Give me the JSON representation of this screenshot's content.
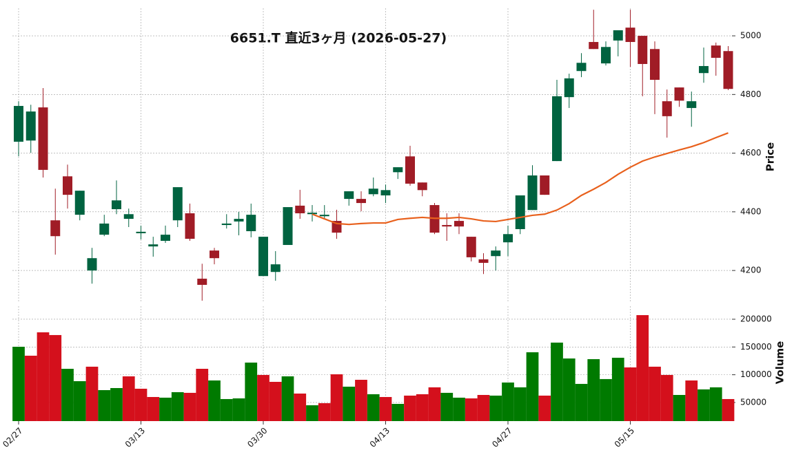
{
  "chart_data": {
    "type": "candlestick",
    "title": "6651.T  直近3ヶ月  (2026-05-27)",
    "ylabel": "Price",
    "volume_label": "Volume",
    "categories": [
      "02/27",
      null,
      null,
      null,
      null,
      null,
      null,
      null,
      null,
      null,
      "03/13",
      null,
      null,
      null,
      null,
      null,
      null,
      null,
      null,
      null,
      "03/30",
      null,
      null,
      null,
      null,
      null,
      null,
      null,
      null,
      null,
      "04/13",
      null,
      null,
      null,
      null,
      null,
      null,
      null,
      null,
      null,
      "04/27",
      null,
      null,
      null,
      null,
      null,
      null,
      null,
      null,
      null,
      "05/15",
      null,
      null,
      null,
      null,
      null,
      null,
      null,
      null
    ],
    "open": [
      4639,
      4643,
      4756,
      4371,
      4521,
      4390,
      4200,
      4322,
      4409,
      4376,
      4327,
      4282,
      4301,
      4371,
      4395,
      4172,
      4268,
      4355,
      4367,
      4334,
      4181,
      4195,
      4287,
      4421,
      4392,
      4385,
      4369,
      4444,
      4444,
      4460,
      4456,
      4535,
      4589,
      4500,
      4423,
      4355,
      4369,
      4315,
      4238,
      4249,
      4296,
      4341,
      4406,
      4524,
      4573,
      4791,
      4880,
      4979,
      4906,
      4984,
      5028,
      5000,
      4955,
      4777,
      4824,
      4754,
      4873,
      4967,
      4948
    ],
    "high": [
      4777,
      4765,
      4822,
      4479,
      4561,
      4472,
      4277,
      4390,
      4507,
      4411,
      4353,
      4315,
      4353,
      4484,
      4428,
      4223,
      4277,
      4392,
      4400,
      4428,
      4315,
      4266,
      4416,
      4475,
      4423,
      4423,
      4407,
      4470,
      4470,
      4517,
      4493,
      4552,
      4625,
      4500,
      4430,
      4395,
      4395,
      4315,
      4259,
      4282,
      4353,
      4456,
      4559,
      4524,
      4850,
      4871,
      4941,
      5089,
      4981,
      5019,
      5089,
      5000,
      4981,
      4817,
      4824,
      4810,
      4960,
      4977,
      4965
    ],
    "low": [
      4589,
      4601,
      4517,
      4254,
      4411,
      4371,
      4155,
      4317,
      4392,
      4348,
      4306,
      4247,
      4294,
      4348,
      4301,
      4097,
      4221,
      4343,
      4320,
      4313,
      4181,
      4165,
      4287,
      4376,
      4367,
      4376,
      4308,
      4421,
      4402,
      4453,
      4430,
      4512,
      4489,
      4453,
      4324,
      4301,
      4324,
      4231,
      4188,
      4200,
      4249,
      4324,
      4406,
      4458,
      4573,
      4754,
      4859,
      4955,
      4899,
      4930,
      4894,
      4794,
      4733,
      4653,
      4758,
      4690,
      4840,
      4864,
      4815
    ],
    "close": [
      4761,
      4742,
      4543,
      4317,
      4458,
      4472,
      4242,
      4360,
      4439,
      4392,
      4332,
      4289,
      4322,
      4484,
      4308,
      4151,
      4242,
      4360,
      4376,
      4390,
      4315,
      4221,
      4416,
      4395,
      4397,
      4390,
      4329,
      4470,
      4430,
      4479,
      4474,
      4552,
      4496,
      4474,
      4329,
      4350,
      4350,
      4245,
      4226,
      4268,
      4324,
      4456,
      4524,
      4458,
      4794,
      4855,
      4908,
      4955,
      4962,
      5019,
      4979,
      4904,
      4850,
      4726,
      4779,
      4777,
      4897,
      4925,
      4819
    ],
    "moving_average": {
      "color": "#e8601c",
      "values": [
        null,
        null,
        null,
        null,
        null,
        null,
        null,
        null,
        null,
        null,
        null,
        null,
        null,
        null,
        null,
        null,
        null,
        null,
        null,
        null,
        null,
        null,
        null,
        null,
        4392,
        4376,
        4360,
        4357,
        4360,
        4362,
        4362,
        4374,
        4378,
        4381,
        4378,
        4378,
        4381,
        4376,
        4369,
        4367,
        4374,
        4381,
        4388,
        4392,
        4406,
        4428,
        4456,
        4477,
        4500,
        4528,
        4552,
        4573,
        4587,
        4599,
        4611,
        4622,
        4636,
        4653,
        4669
      ]
    },
    "volume": [
      150400,
      134300,
      176400,
      171500,
      110700,
      88400,
      114500,
      72300,
      76000,
      97100,
      74800,
      59900,
      58700,
      68600,
      67400,
      110700,
      89700,
      56200,
      57400,
      121900,
      99600,
      87200,
      97100,
      66100,
      45000,
      48800,
      100800,
      78500,
      90900,
      64900,
      59900,
      47500,
      62400,
      64900,
      77300,
      67400,
      58700,
      57400,
      63600,
      62400,
      86000,
      77300,
      140500,
      62400,
      157900,
      129300,
      83500,
      128100,
      92200,
      130600,
      113200,
      207400,
      114500,
      99600,
      63600,
      89700,
      73600,
      77300,
      56200
    ],
    "up_color": "#006340",
    "down_color": "#a01c26",
    "volume_up_color": "#007a00",
    "volume_down_color": "#d4101c",
    "ylim": [
      4090,
      5094
    ],
    "yticks": [
      4200,
      4400,
      4600,
      4800,
      5000
    ],
    "volume_ylim": [
      16500,
      223500
    ],
    "volume_yticks": [
      50000,
      100000,
      150000,
      200000
    ],
    "grid": true
  }
}
